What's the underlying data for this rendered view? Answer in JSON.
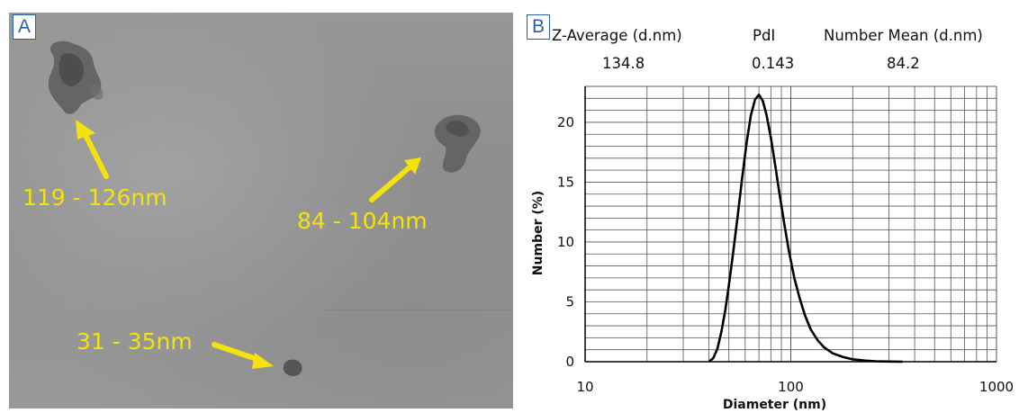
{
  "panel_a": {
    "label": "A",
    "annotations": [
      "119 - 126nm",
      "84 - 104nm",
      "31 - 35nm"
    ]
  },
  "panel_b": {
    "label": "B",
    "stats": [
      {
        "name": "Z-Average (d.nm)",
        "value": "134.8"
      },
      {
        "name": "PdI",
        "value": "0.143"
      },
      {
        "name": "Number Mean (d.nm)",
        "value": "84.2"
      }
    ]
  },
  "colors": {
    "annotation": "#f4e20c",
    "panel_label": "#2b5fa8",
    "curve": "#000000"
  },
  "chart_data": {
    "type": "line",
    "xlabel": "Diameter (nm)",
    "ylabel": "Number (%)",
    "xscale": "log",
    "xlim": [
      10,
      1000
    ],
    "ylim": [
      0,
      23
    ],
    "x_ticks": [
      "10",
      "100",
      "1000"
    ],
    "y_ticks": [
      "0",
      "5",
      "10",
      "15",
      "20"
    ],
    "grid": true,
    "series": [
      {
        "x": [
          40,
          42,
          44,
          46,
          48,
          50,
          52,
          55,
          58,
          61,
          64,
          67,
          70,
          73,
          76,
          80,
          84,
          88,
          93,
          98,
          104,
          110,
          117,
          125,
          135,
          145,
          160,
          180,
          200,
          230,
          260,
          300,
          350
        ],
        "values": [
          0,
          0.3,
          1.1,
          2.5,
          4.3,
          6.4,
          8.6,
          12.0,
          15.3,
          18.3,
          20.6,
          21.9,
          22.3,
          21.8,
          20.7,
          18.7,
          16.4,
          14.1,
          11.5,
          9.2,
          7.0,
          5.4,
          3.9,
          2.7,
          1.8,
          1.2,
          0.7,
          0.38,
          0.2,
          0.09,
          0.04,
          0.015,
          0
        ]
      }
    ]
  }
}
